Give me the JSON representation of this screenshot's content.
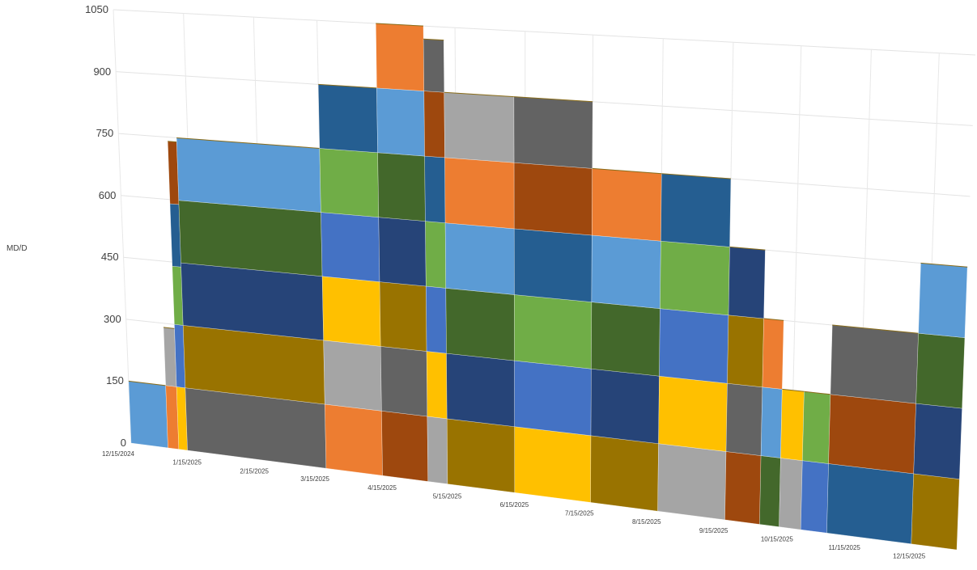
{
  "chart_data": {
    "type": "area",
    "stacked": true,
    "perspective_3d": true,
    "ylabel": "MD/D",
    "ylim": [
      0,
      1050
    ],
    "y_ticks": [
      "0",
      "150",
      "300",
      "450",
      "600",
      "750",
      "900",
      "1050"
    ],
    "x_ticks": [
      "12/15/2024",
      "1/15/2025",
      "2/15/2025",
      "3/15/2025",
      "4/15/2025",
      "5/15/2025",
      "6/15/2025",
      "7/15/2025",
      "8/15/2025",
      "9/15/2025",
      "10/15/2025",
      "11/15/2025",
      "12/15/2025"
    ],
    "grid": true,
    "legend": "none",
    "palette": [
      "#5b9bd5",
      "#ed7d31",
      "#a5a5a5",
      "#ffc000",
      "#4472c4",
      "#70ad47",
      "#255e91",
      "#9e480e",
      "#636363",
      "#997300",
      "#264478",
      "#43682b"
    ],
    "segments": [
      {
        "start": "12/15/2024",
        "end": "1/1/2025",
        "layers": [
          150
        ]
      },
      {
        "start": "1/1/2025",
        "end": "1/6/2025",
        "layers": [
          150,
          140
        ]
      },
      {
        "start": "1/6/2025",
        "end": "1/10/2025",
        "layers": [
          150,
          150,
          140,
          150,
          150
        ]
      },
      {
        "start": "1/10/2025",
        "end": "3/15/2025",
        "layers": [
          150,
          150,
          150,
          150,
          150
        ]
      },
      {
        "start": "3/15/2025",
        "end": "4/10/2025",
        "layers": [
          150,
          150,
          150,
          150,
          150,
          150
        ]
      },
      {
        "start": "4/10/2025",
        "end": "5/1/2025",
        "layers": [
          150,
          150,
          150,
          150,
          150,
          150,
          150
        ]
      },
      {
        "start": "5/1/2025",
        "end": "5/10/2025",
        "layers": [
          150,
          150,
          150,
          150,
          150,
          150,
          120
        ]
      },
      {
        "start": "5/10/2025",
        "end": "6/10/2025",
        "layers": [
          150,
          150,
          150,
          150,
          150,
          150
        ]
      },
      {
        "start": "6/10/2025",
        "end": "7/15/2025",
        "layers": [
          150,
          150,
          150,
          150,
          150,
          150
        ]
      },
      {
        "start": "7/15/2025",
        "end": "8/15/2025",
        "layers": [
          150,
          150,
          150,
          150,
          150
        ]
      },
      {
        "start": "8/15/2025",
        "end": "9/15/2025",
        "layers": [
          150,
          150,
          150,
          150,
          150
        ]
      },
      {
        "start": "9/15/2025",
        "end": "10/1/2025",
        "layers": [
          150,
          150,
          150,
          150
        ]
      },
      {
        "start": "10/1/2025",
        "end": "10/10/2025",
        "layers": [
          150,
          150,
          150
        ]
      },
      {
        "start": "10/10/2025",
        "end": "10/20/2025",
        "layers": [
          150,
          150
        ]
      },
      {
        "start": "10/20/2025",
        "end": "11/1/2025",
        "layers": [
          150,
          150
        ]
      },
      {
        "start": "11/1/2025",
        "end": "12/10/2025",
        "layers": [
          150,
          150,
          150
        ]
      },
      {
        "start": "12/10/2025",
        "end": "12/31/2025",
        "layers": [
          150,
          150,
          150,
          150
        ]
      }
    ]
  }
}
